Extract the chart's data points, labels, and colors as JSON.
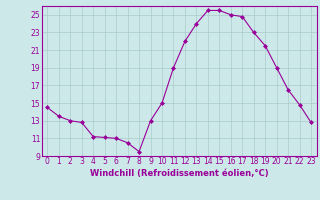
{
  "x": [
    0,
    1,
    2,
    3,
    4,
    5,
    6,
    7,
    8,
    9,
    10,
    11,
    12,
    13,
    14,
    15,
    16,
    17,
    18,
    19,
    20,
    21,
    22,
    23
  ],
  "y": [
    14.5,
    13.5,
    13.0,
    12.8,
    11.2,
    11.1,
    11.0,
    10.5,
    9.5,
    13.0,
    15.0,
    19.0,
    22.0,
    24.0,
    25.5,
    25.5,
    25.0,
    24.8,
    23.0,
    21.5,
    19.0,
    16.5,
    14.8,
    12.8
  ],
  "line_color": "#990099",
  "marker": "D",
  "marker_size": 2.0,
  "bg_color": "#cce8e8",
  "grid_color": "#aacccc",
  "xlabel": "Windchill (Refroidissement éolien,°C)",
  "xlabel_fontsize": 6.0,
  "tick_fontsize": 5.5,
  "ylim": [
    9,
    26
  ],
  "xlim": [
    -0.5,
    23.5
  ],
  "yticks": [
    9,
    11,
    13,
    15,
    17,
    19,
    21,
    23,
    25
  ],
  "xticks": [
    0,
    1,
    2,
    3,
    4,
    5,
    6,
    7,
    8,
    9,
    10,
    11,
    12,
    13,
    14,
    15,
    16,
    17,
    18,
    19,
    20,
    21,
    22,
    23
  ]
}
